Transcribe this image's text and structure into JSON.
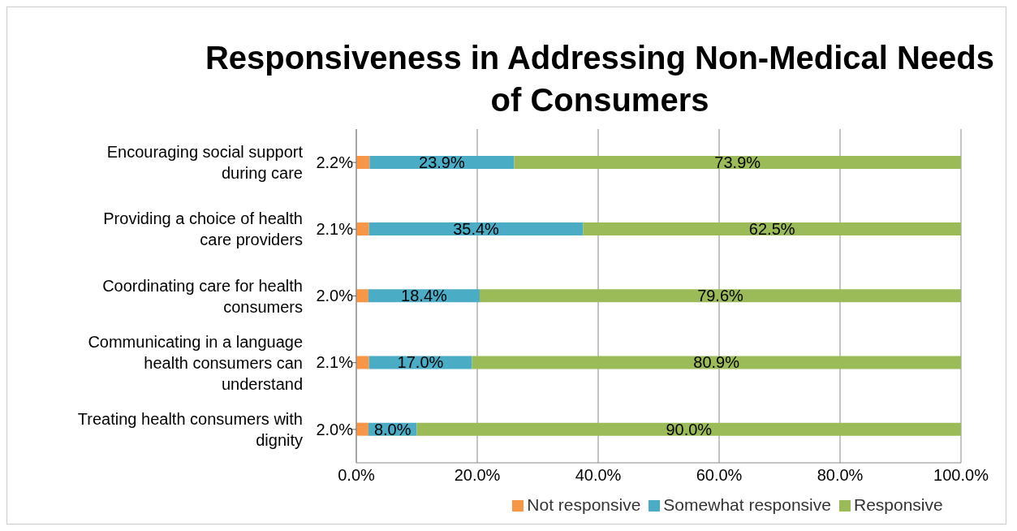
{
  "chart_data": {
    "type": "bar",
    "orientation": "horizontal",
    "stacked": true,
    "title": "Responsiveness in Addressing Non-Medical Needs of Consumers",
    "categories": [
      "Encouraging social support during care",
      "Providing a choice of health care providers",
      "Coordinating care for health consumers",
      "Communicating in a language health consumers can understand",
      "Treating health consumers with dignity"
    ],
    "series": [
      {
        "name": "Not responsive",
        "color": "#f79646",
        "values": [
          2.2,
          2.1,
          2.0,
          2.1,
          2.0
        ],
        "value_labels": [
          "2.2%",
          "2.1%",
          "2.0%",
          "2.1%",
          "2.0%"
        ]
      },
      {
        "name": "Somewhat responsive",
        "color": "#4bacc6",
        "values": [
          23.9,
          35.4,
          18.4,
          17.0,
          8.0
        ],
        "value_labels": [
          "23.9%",
          "35.4%",
          "18.4%",
          "17.0%",
          "8.0%"
        ]
      },
      {
        "name": "Responsive",
        "color": "#9bbb59",
        "values": [
          73.9,
          62.5,
          79.6,
          80.9,
          90.0
        ],
        "value_labels": [
          "73.9%",
          "62.5%",
          "79.6%",
          "80.9%",
          "90.0%"
        ]
      }
    ],
    "xlim": [
      0,
      100
    ],
    "xticks": [
      {
        "value": 0,
        "label": "0.0%"
      },
      {
        "value": 20,
        "label": "20.0%"
      },
      {
        "value": 40,
        "label": "40.0%"
      },
      {
        "value": 60,
        "label": "60.0%"
      },
      {
        "value": 80,
        "label": "80.0%"
      },
      {
        "value": 100,
        "label": "100.0%"
      }
    ],
    "grid": "x",
    "legend": "bottom"
  }
}
